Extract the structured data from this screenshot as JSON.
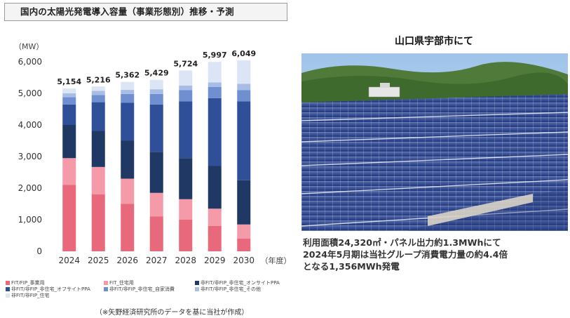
{
  "header": {
    "title": "国内の太陽光発電導入容量（事業形態別）推移・予測"
  },
  "chart_data": {
    "type": "bar",
    "stacked": true,
    "y_unit_label": "（MW）",
    "x_unit_label": "（年度）",
    "ylim": [
      0,
      6000
    ],
    "yticks": [
      "0",
      "1,000",
      "2,000",
      "3,000",
      "4,000",
      "5,000",
      "6,000"
    ],
    "grid": false,
    "categories": [
      "2024",
      "2025",
      "2026",
      "2027",
      "2028",
      "2029",
      "2030"
    ],
    "totals": [
      "5,154",
      "5,216",
      "5,362",
      "5,429",
      "5,724",
      "5,997",
      "6,049"
    ],
    "series": [
      {
        "name": "FIT/FIP_事業用",
        "color": "#e8687c",
        "values": [
          2100,
          1800,
          1500,
          1100,
          1000,
          800,
          400
        ]
      },
      {
        "name": "FIT_住宅用",
        "color": "#f59aa8",
        "values": [
          850,
          870,
          800,
          750,
          650,
          550,
          450
        ]
      },
      {
        "name": "非FIT/非FIP_非住宅_オンサイトPPA",
        "color": "#1f3864",
        "values": [
          1050,
          1150,
          1200,
          1300,
          1300,
          1350,
          1400
        ]
      },
      {
        "name": "非FIT/非FIP_非住宅_オフサイトPPA",
        "color": "#2f4f98",
        "values": [
          650,
          900,
          1200,
          1500,
          1800,
          2150,
          2500
        ]
      },
      {
        "name": "非FIT/非FIP_非住宅_自家消費",
        "color": "#6f8fd0",
        "values": [
          230,
          230,
          280,
          330,
          350,
          350,
          350
        ]
      },
      {
        "name": "非FIT/非FIP_非住宅_その他",
        "color": "#a8bde6",
        "values": [
          120,
          130,
          130,
          150,
          150,
          150,
          200
        ]
      },
      {
        "name": "非FIT/非FIP_住宅",
        "color": "#dbe5f5",
        "values": [
          154,
          136,
          252,
          299,
          474,
          647,
          749
        ]
      }
    ]
  },
  "legend": {
    "items": [
      {
        "label": "FIT/FIP_事業用",
        "color": "#e8687c"
      },
      {
        "label": "FIT_住宅用",
        "color": "#f59aa8"
      },
      {
        "label": "非FIT/非FIP_非住宅_オンサイトPPA",
        "color": "#1f3864"
      },
      {
        "label": "非FIT/非FIP_非住宅_オフサイトPPA",
        "color": "#2f4f98"
      },
      {
        "label": "非FIT/非FIP_非住宅_自家消費",
        "color": "#6f8fd0"
      },
      {
        "label": "非FIT/非FIP_非住宅_その他",
        "color": "#a8bde6"
      },
      {
        "label": "非FIT/非FIP_住宅",
        "color": "#dbe5f5"
      }
    ]
  },
  "source_note": "（※矢野経済研究所のデータを基に当社が作成）",
  "right": {
    "heading": "山口県宇部市にて",
    "caption_lines": [
      "利用面積24,320㎡・パネル出力約1.3MWhにて",
      "2024年5月期は当社グループ消費電力量の約4.4倍",
      "となる1,356MWh発電"
    ]
  }
}
